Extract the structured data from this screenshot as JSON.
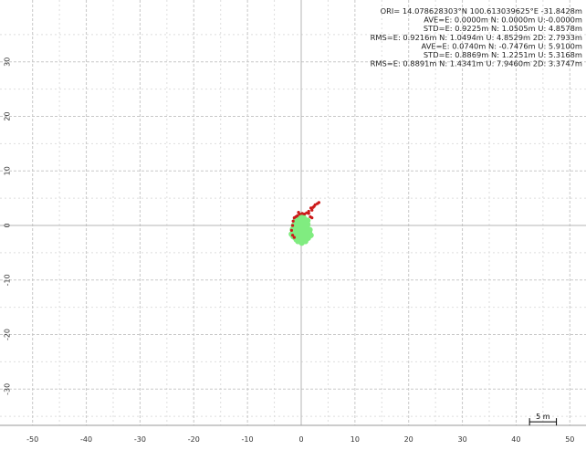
{
  "chart_data": {
    "type": "scatter",
    "title": "",
    "xlabel": "",
    "ylabel": "",
    "xlim": [
      -54,
      56
    ],
    "ylim": [
      -40.5,
      39.5
    ],
    "x_major_ticks": [
      -50,
      -40,
      -30,
      -20,
      -10,
      0,
      10,
      20,
      30,
      40,
      50
    ],
    "y_major_ticks": [
      -30,
      -20,
      -10,
      0,
      10,
      20,
      30
    ],
    "minor_grid_step": 5,
    "grid": true,
    "grid_style": "dashed",
    "axes_lines_through_origin": true,
    "stats_text": [
      "ORI= 14.078628303°N  100.613039625°E -31.8428m",
      "AVE=E: 0.0000m N: 0.0000m U:-0.0000m",
      "STD=E: 0.9225m N: 1.0505m U: 4.8578m",
      "RMS=E: 0.9216m N: 1.0494m U: 4.8529m 2D: 2.7933m",
      "AVE=E: 0.0740m N: -0.7476m U: 5.9100m",
      "STD=E: 0.8869m N: 1.2251m U: 5.3168m",
      "RMS=E: 0.8891m N: 1.4341m U: 7.9460m 2D: 3.3747m"
    ],
    "scale_bar": {
      "label": "5 m",
      "length_m": 5,
      "x_start": 42.5,
      "y": -36
    },
    "series": [
      {
        "color": "#80ec80",
        "marker": "dot",
        "points": [
          [
            0.0,
            0.0
          ],
          [
            -0.4,
            0.5
          ],
          [
            0.4,
            0.4
          ],
          [
            -0.8,
            -0.2
          ],
          [
            0.8,
            -0.3
          ],
          [
            0.0,
            -1.0
          ],
          [
            -0.5,
            -1.5
          ],
          [
            0.5,
            -1.6
          ],
          [
            -1.0,
            -0.8
          ],
          [
            1.0,
            -0.9
          ],
          [
            0.0,
            -2.0
          ],
          [
            -0.7,
            -2.3
          ],
          [
            0.7,
            -2.4
          ],
          [
            1.4,
            -1.5
          ],
          [
            -1.3,
            -1.4
          ],
          [
            0.2,
            1.0
          ],
          [
            -0.2,
            1.4
          ],
          [
            0.6,
            1.2
          ],
          [
            -0.9,
            0.8
          ],
          [
            1.2,
            0.2
          ],
          [
            -1.4,
            0.0
          ],
          [
            1.6,
            -0.8
          ],
          [
            -1.6,
            -0.7
          ],
          [
            0.0,
            -2.8
          ],
          [
            0.8,
            -2.9
          ],
          [
            -0.6,
            -2.9
          ],
          [
            1.3,
            -2.3
          ],
          [
            -1.2,
            -2.2
          ],
          [
            0.3,
            -0.5
          ],
          [
            -0.3,
            -0.3
          ],
          [
            0.9,
            0.7
          ],
          [
            -0.7,
            1.0
          ],
          [
            0.4,
            1.6
          ],
          [
            -0.4,
            -2.6
          ],
          [
            1.8,
            -1.8
          ],
          [
            -1.8,
            -1.6
          ],
          [
            0.1,
            -3.2
          ],
          [
            1.1,
            -0.1
          ],
          [
            -1.1,
            0.3
          ],
          [
            0.6,
            -1.2
          ],
          [
            -0.6,
            -1.1
          ],
          [
            1.5,
            -1.2
          ],
          [
            -1.5,
            -2.0
          ],
          [
            0.3,
            -2.2
          ],
          [
            -0.2,
            -1.8
          ],
          [
            1.2,
            0.9
          ],
          [
            -1.0,
            1.2
          ],
          [
            0.0,
            1.8
          ],
          [
            0.9,
            -2.0
          ],
          [
            -0.9,
            -2.6
          ]
        ]
      },
      {
        "color": "#cc1a1a",
        "marker": "dot",
        "points": [
          [
            3.0,
            4.0
          ],
          [
            2.6,
            3.8
          ],
          [
            3.3,
            4.2
          ],
          [
            2.2,
            3.3
          ],
          [
            1.8,
            3.2
          ],
          [
            2.0,
            2.8
          ],
          [
            1.4,
            2.6
          ],
          [
            1.0,
            2.3
          ],
          [
            0.6,
            2.1
          ],
          [
            0.2,
            2.2
          ],
          [
            -0.3,
            2.1
          ],
          [
            -0.7,
            1.8
          ],
          [
            -1.0,
            1.6
          ],
          [
            -1.3,
            1.4
          ],
          [
            -1.5,
            0.8
          ],
          [
            -1.6,
            0.0
          ],
          [
            -1.8,
            -0.9
          ],
          [
            -1.6,
            -1.8
          ],
          [
            -1.3,
            -2.2
          ],
          [
            1.4,
            2.2
          ],
          [
            1.7,
            1.6
          ],
          [
            2.0,
            1.4
          ],
          [
            -0.5,
            2.4
          ],
          [
            2.4,
            3.5
          ]
        ]
      }
    ]
  }
}
